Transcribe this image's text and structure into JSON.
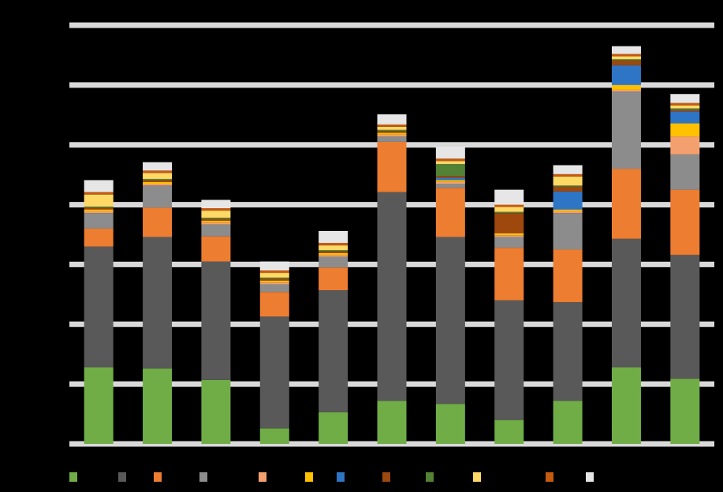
{
  "chart_data": {
    "type": "bar",
    "stacked": true,
    "ylim": [
      0,
      70
    ],
    "yticks": [
      0,
      10,
      20,
      30,
      40,
      50,
      60,
      70
    ],
    "grid": true,
    "series": [
      {
        "color": "#70ad47",
        "values": [
          12.8,
          12.6,
          10.7,
          2.6,
          5.3,
          7.2,
          6.7,
          4.0,
          7.2,
          12.8,
          10.9
        ]
      },
      {
        "color": "#595959",
        "values": [
          20.2,
          22.0,
          19.8,
          18.7,
          20.4,
          34.9,
          27.9,
          20.0,
          16.5,
          21.5,
          20.7
        ]
      },
      {
        "color": "#ed7d31",
        "values": [
          3.0,
          4.9,
          4.2,
          4.1,
          3.8,
          8.4,
          8.2,
          8.8,
          8.8,
          11.7,
          10.9
        ]
      },
      {
        "color": "#8c8c8c",
        "values": [
          2.6,
          3.7,
          2.0,
          1.3,
          1.8,
          0.9,
          0.7,
          1.8,
          6.1,
          12.9,
          5.9
        ]
      },
      {
        "color": "#f4a06e",
        "values": [
          0.3,
          0.3,
          0.3,
          0.3,
          0.3,
          0.3,
          0.3,
          0.3,
          0.3,
          0.3,
          3.0
        ]
      },
      {
        "color": "#ffc000",
        "values": [
          0.3,
          0.3,
          0.3,
          0.3,
          0.3,
          0.3,
          0.3,
          0.3,
          0.3,
          0.8,
          2.2
        ]
      },
      {
        "color": "#2e75c6",
        "values": [
          0,
          0,
          0,
          0,
          0,
          0,
          0.4,
          0,
          3.0,
          3.3,
          2.0
        ]
      },
      {
        "color": "#9e480e",
        "values": [
          0.3,
          0.3,
          0.3,
          0.3,
          0.3,
          0.3,
          0.3,
          3.4,
          0.8,
          0.8,
          0.3
        ]
      },
      {
        "color": "#548235",
        "values": [
          0.2,
          0.2,
          0.2,
          0.2,
          0.2,
          0.2,
          2.0,
          0.2,
          0.2,
          0.2,
          0.2
        ]
      },
      {
        "color": "#ffd966",
        "values": [
          2.0,
          1.0,
          1.2,
          0.8,
          0.8,
          0.5,
          0.5,
          0.8,
          1.5,
          0.5,
          0.5
        ]
      },
      {
        "color": "#c55a11",
        "values": [
          0.4,
          0.4,
          0.4,
          0.4,
          0.4,
          0.4,
          0.4,
          0.4,
          0.4,
          0.4,
          0.4
        ]
      },
      {
        "color": "#e7e6e6",
        "values": [
          2.0,
          1.4,
          1.4,
          1.5,
          2.0,
          1.7,
          2.0,
          2.5,
          1.5,
          1.3,
          1.5
        ]
      }
    ]
  }
}
